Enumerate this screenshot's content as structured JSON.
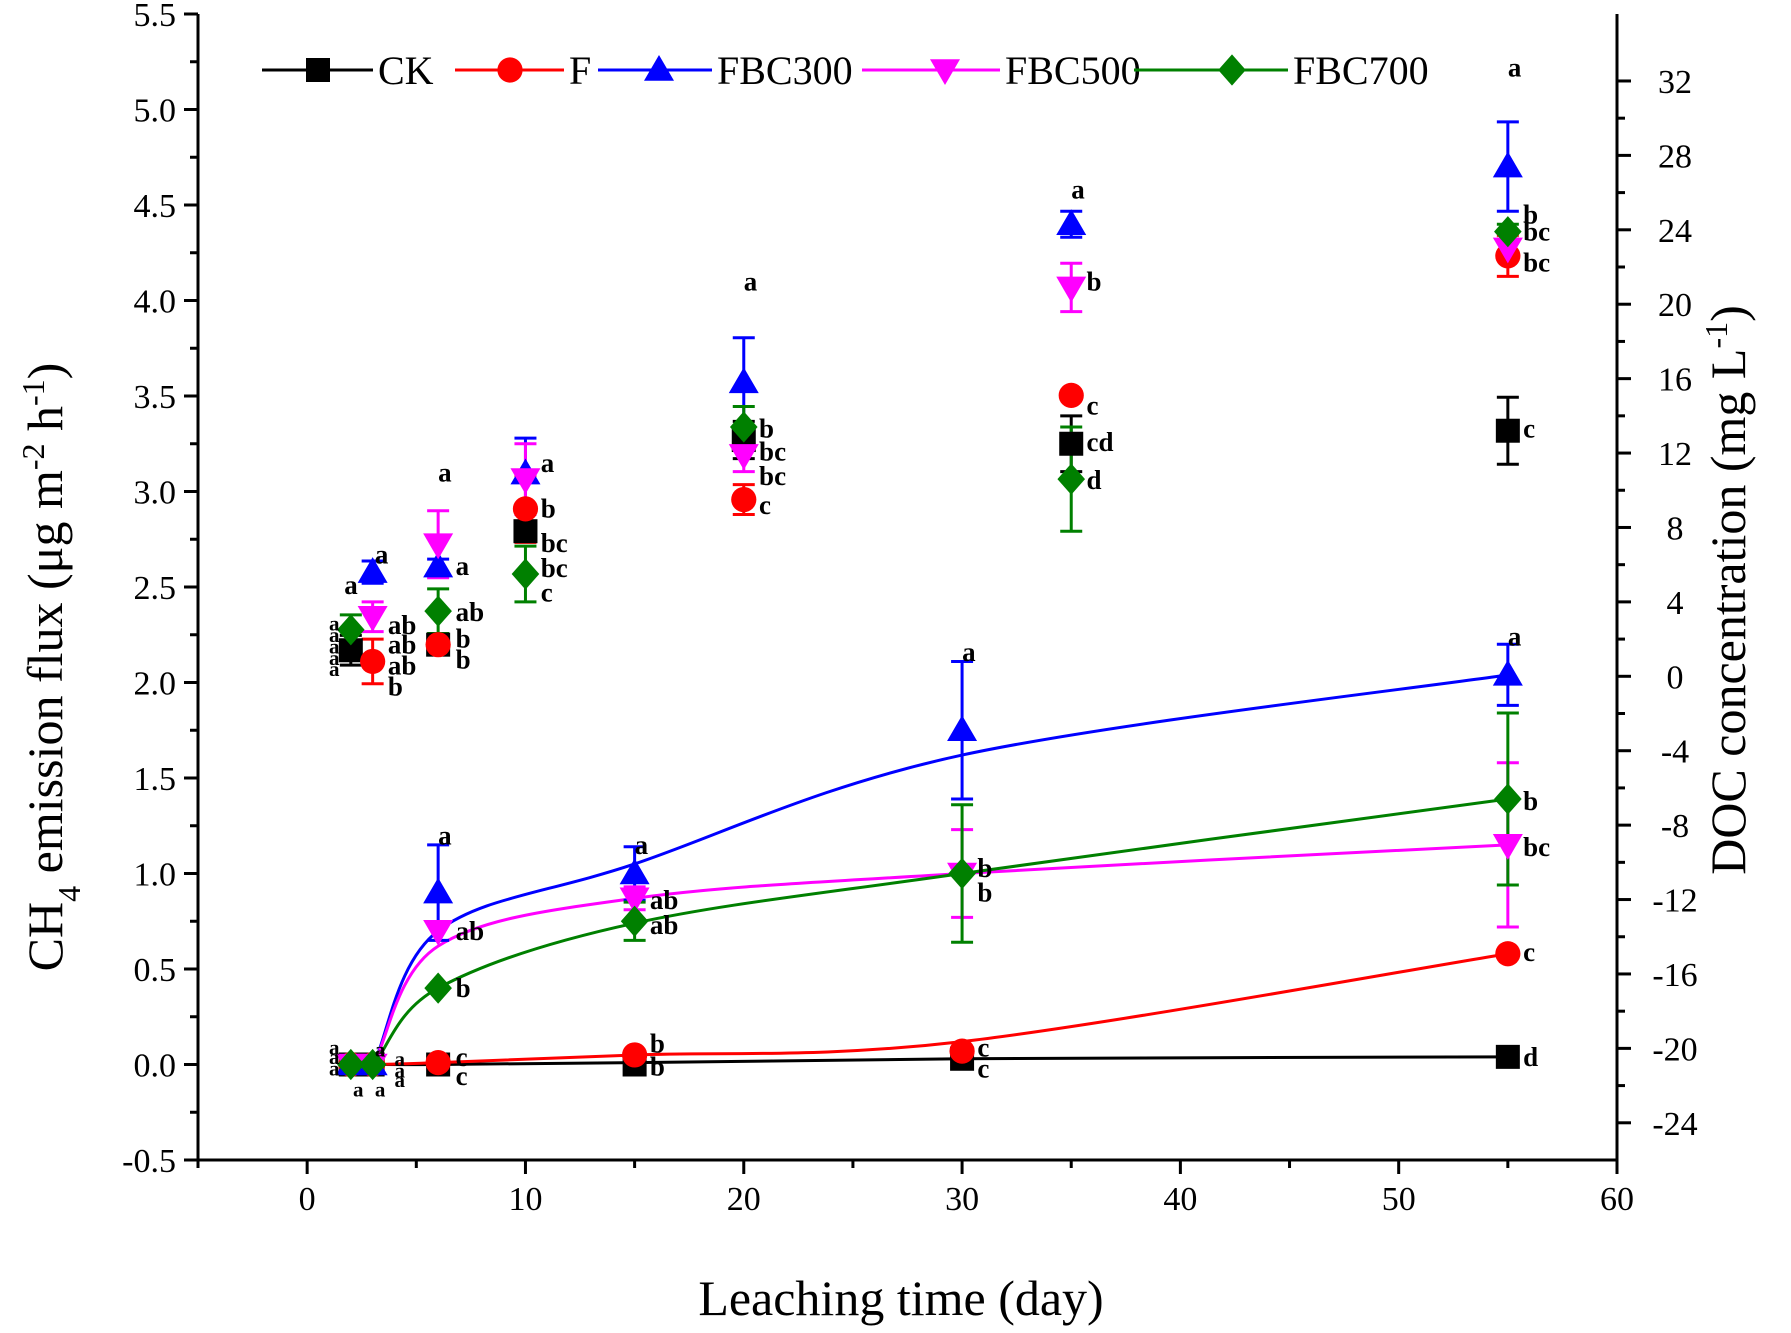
{
  "chart_data": {
    "type": "scatter",
    "xlabel": "Leaching time (day)",
    "ylabel_left": {
      "prefix": "CH",
      "sub": "4",
      "mid": " emission flux (μg m",
      "sup1": "-2",
      "mid2": " h",
      "sup2": "-1",
      "suffix": ")"
    },
    "ylabel_right": {
      "prefix": "DOC concentration (mg L",
      "sup": "-1",
      "suffix": ")"
    },
    "xlim": [
      -5,
      60
    ],
    "ylim_left": [
      -0.5,
      5.5
    ],
    "ylim_right": [
      -26,
      35.6
    ],
    "x_ticks": [
      "0",
      "10",
      "20",
      "30",
      "40",
      "50",
      "60"
    ],
    "y_left_ticks": [
      "-0.5",
      "0.0",
      "0.5",
      "1.0",
      "1.5",
      "2.0",
      "2.5",
      "3.0",
      "3.5",
      "4.0",
      "4.5",
      "5.0",
      "5.5"
    ],
    "y_right_ticks": [
      "-24",
      "-20",
      "-16",
      "-12",
      "-8",
      "-4",
      "0",
      "4",
      "8",
      "12",
      "16",
      "20",
      "24",
      "28",
      "32"
    ],
    "colors": {
      "CK": "#000000",
      "F": "#ff0000",
      "FBC300": "#0000ff",
      "FBC500": "#ff00ff",
      "FBC700": "#008000"
    },
    "legend": [
      {
        "name": "CK",
        "marker": "square"
      },
      {
        "name": "F",
        "marker": "circle"
      },
      {
        "name": "FBC300",
        "marker": "triangle-up"
      },
      {
        "name": "FBC500",
        "marker": "triangle-down"
      },
      {
        "name": "FBC700",
        "marker": "diamond"
      }
    ],
    "ch4_series": [
      {
        "name": "CK",
        "x": [
          2,
          3,
          6,
          15,
          30,
          55
        ],
        "y": [
          0.0,
          0.0,
          0.0,
          0.0,
          0.03,
          0.04
        ],
        "line_y": [
          0.0,
          0.0,
          0.0,
          0.01,
          0.03,
          0.04
        ],
        "err": [
          0,
          0,
          0,
          0,
          0,
          0
        ]
      },
      {
        "name": "F",
        "x": [
          2,
          3,
          6,
          15,
          30,
          55
        ],
        "y": [
          0.0,
          0.0,
          0.01,
          0.05,
          0.07,
          0.58
        ],
        "line_y": [
          0.0,
          0.0,
          0.01,
          0.05,
          0.12,
          0.58
        ],
        "err": [
          0,
          0,
          0,
          0,
          0,
          0
        ]
      },
      {
        "name": "FBC300",
        "x": [
          2,
          3,
          6,
          15,
          30,
          55
        ],
        "y": [
          0.0,
          0.0,
          0.9,
          1.0,
          1.75,
          2.04
        ],
        "line_y": [
          0.0,
          0.0,
          0.7,
          1.05,
          1.62,
          2.04
        ],
        "err": [
          0,
          0,
          0.25,
          0.14,
          0.36,
          0.16
        ]
      },
      {
        "name": "FBC500",
        "x": [
          2,
          3,
          6,
          15,
          30,
          55
        ],
        "y": [
          0.0,
          0.0,
          0.7,
          0.87,
          1.0,
          1.15
        ],
        "line_y": [
          0.0,
          0.0,
          0.62,
          0.87,
          1.0,
          1.15
        ],
        "err": [
          0,
          0,
          0,
          0.06,
          0.23,
          0.43
        ]
      },
      {
        "name": "FBC700",
        "x": [
          2,
          3,
          6,
          15,
          30,
          55
        ],
        "y": [
          0.0,
          0.0,
          0.4,
          0.75,
          1.0,
          1.39
        ],
        "line_y": [
          0.0,
          0.0,
          0.4,
          0.74,
          1.0,
          1.39
        ],
        "err": [
          0,
          0,
          0,
          0.1,
          0.36,
          0.45
        ]
      }
    ],
    "doc_series": [
      {
        "name": "CK",
        "x": [
          2,
          6,
          10,
          20,
          35,
          55
        ],
        "y": [
          1.4,
          1.7,
          7.8,
          12.7,
          12.5,
          13.2
        ],
        "err": [
          0.8,
          0,
          0,
          1,
          1.5,
          1.8
        ]
      },
      {
        "name": "F",
        "x": [
          3,
          6,
          10,
          20,
          35,
          55
        ],
        "y": [
          0.8,
          1.7,
          9.0,
          9.5,
          15.1,
          22.6
        ],
        "err": [
          1.2,
          0,
          1.8,
          0.8,
          0,
          1.1
        ]
      },
      {
        "name": "FBC300",
        "x": [
          3,
          6,
          10,
          20,
          35,
          55
        ],
        "y": [
          5.6,
          5.9,
          10.9,
          15.8,
          24.3,
          27.4
        ],
        "err": [
          0.6,
          0.4,
          1.9,
          2.4,
          0.7,
          2.4
        ]
      },
      {
        "name": "FBC500",
        "x": [
          3,
          6,
          10,
          20,
          35,
          55
        ],
        "y": [
          3.2,
          7.1,
          10.6,
          11.9,
          20.9,
          23.0
        ],
        "err": [
          0.8,
          1.8,
          1.9,
          0.9,
          1.3,
          0.5
        ]
      },
      {
        "name": "FBC700",
        "x": [
          2,
          6,
          10,
          20,
          35,
          55
        ],
        "y": [
          2.5,
          3.5,
          5.5,
          13.4,
          10.6,
          23.9
        ],
        "err": [
          0.8,
          1.2,
          1.5,
          1.1,
          2.8,
          0.4
        ]
      }
    ],
    "annotations": [
      {
        "text": "a",
        "x": 1.0,
        "y": 2.32,
        "size": "small"
      },
      {
        "text": "a",
        "x": 1.0,
        "y": 2.26,
        "size": "small"
      },
      {
        "text": "a",
        "x": 1.0,
        "y": 2.2,
        "size": "small"
      },
      {
        "text": "a",
        "x": 1.0,
        "y": 2.14,
        "size": "small"
      },
      {
        "text": "a",
        "x": 1.0,
        "y": 2.08,
        "size": "small"
      },
      {
        "text": "a",
        "x": 1.7,
        "y": 2.51
      },
      {
        "text": "a",
        "x": 3.1,
        "y": 2.67
      },
      {
        "text": "ab",
        "x": 3.7,
        "y": 2.3
      },
      {
        "text": "ab",
        "x": 3.7,
        "y": 2.2
      },
      {
        "text": "ab",
        "x": 3.7,
        "y": 2.09
      },
      {
        "text": "b",
        "x": 3.7,
        "y": 1.98
      },
      {
        "text": "a",
        "x": 6.0,
        "y": 3.1
      },
      {
        "text": "a",
        "x": 6.8,
        "y": 2.61
      },
      {
        "text": "ab",
        "x": 6.8,
        "y": 2.37
      },
      {
        "text": "b",
        "x": 6.8,
        "y": 2.23
      },
      {
        "text": "b",
        "x": 6.8,
        "y": 2.12
      },
      {
        "text": "a",
        "x": 10.7,
        "y": 3.15
      },
      {
        "text": "b",
        "x": 10.7,
        "y": 2.91
      },
      {
        "text": "bc",
        "x": 10.7,
        "y": 2.73
      },
      {
        "text": "bc",
        "x": 10.7,
        "y": 2.6
      },
      {
        "text": "c",
        "x": 10.7,
        "y": 2.47
      },
      {
        "text": "a",
        "x": 20.0,
        "y": 4.1
      },
      {
        "text": "b",
        "x": 20.7,
        "y": 3.33
      },
      {
        "text": "bc",
        "x": 20.7,
        "y": 3.21
      },
      {
        "text": "bc",
        "x": 20.7,
        "y": 3.08
      },
      {
        "text": "c",
        "x": 20.7,
        "y": 2.93
      },
      {
        "text": "a",
        "x": 35.0,
        "y": 4.58
      },
      {
        "text": "b",
        "x": 35.7,
        "y": 4.1
      },
      {
        "text": "c",
        "x": 35.7,
        "y": 3.45
      },
      {
        "text": "cd",
        "x": 35.7,
        "y": 3.26
      },
      {
        "text": "d",
        "x": 35.7,
        "y": 3.06
      },
      {
        "text": "a",
        "x": 55.0,
        "y": 5.22
      },
      {
        "text": "b",
        "x": 55.7,
        "y": 4.45
      },
      {
        "text": "bc",
        "x": 55.7,
        "y": 4.36
      },
      {
        "text": "bc",
        "x": 55.7,
        "y": 4.2
      },
      {
        "text": "c",
        "x": 55.7,
        "y": 3.33
      },
      {
        "text": "a",
        "x": 1.0,
        "y": 0.1,
        "size": "small"
      },
      {
        "text": "a",
        "x": 1.0,
        "y": 0.05,
        "size": "small"
      },
      {
        "text": "a",
        "x": 1.0,
        "y": -0.01,
        "size": "small"
      },
      {
        "text": "a",
        "x": 2.1,
        "y": -0.12,
        "size": "small"
      },
      {
        "text": "a",
        "x": 3.1,
        "y": -0.12,
        "size": "small"
      },
      {
        "text": "a",
        "x": 3.1,
        "y": 0.09,
        "size": "small"
      },
      {
        "text": "a",
        "x": 4.0,
        "y": 0.04,
        "size": "small"
      },
      {
        "text": "a",
        "x": 4.0,
        "y": -0.02,
        "size": "small"
      },
      {
        "text": "a",
        "x": 4.0,
        "y": -0.07,
        "size": "small"
      },
      {
        "text": "a",
        "x": 6.0,
        "y": 1.2
      },
      {
        "text": "ab",
        "x": 6.8,
        "y": 0.7
      },
      {
        "text": "b",
        "x": 6.8,
        "y": 0.4
      },
      {
        "text": "c",
        "x": 6.8,
        "y": 0.04
      },
      {
        "text": "c",
        "x": 6.8,
        "y": -0.06
      },
      {
        "text": "a",
        "x": 15.0,
        "y": 1.15
      },
      {
        "text": "ab",
        "x": 15.7,
        "y": 0.86
      },
      {
        "text": "ab",
        "x": 15.7,
        "y": 0.73
      },
      {
        "text": "b",
        "x": 15.7,
        "y": 0.11
      },
      {
        "text": "b",
        "x": 15.7,
        "y": -0.01
      },
      {
        "text": "a",
        "x": 30.0,
        "y": 2.16
      },
      {
        "text": "b",
        "x": 30.7,
        "y": 1.03
      },
      {
        "text": "b",
        "x": 30.7,
        "y": 0.9
      },
      {
        "text": "c",
        "x": 30.7,
        "y": 0.09
      },
      {
        "text": "c",
        "x": 30.7,
        "y": -0.02
      },
      {
        "text": "a",
        "x": 55.0,
        "y": 2.24
      },
      {
        "text": "b",
        "x": 55.7,
        "y": 1.38
      },
      {
        "text": "bc",
        "x": 55.7,
        "y": 1.14
      },
      {
        "text": "c",
        "x": 55.7,
        "y": 0.59
      },
      {
        "text": "d",
        "x": 55.7,
        "y": 0.04
      }
    ]
  }
}
